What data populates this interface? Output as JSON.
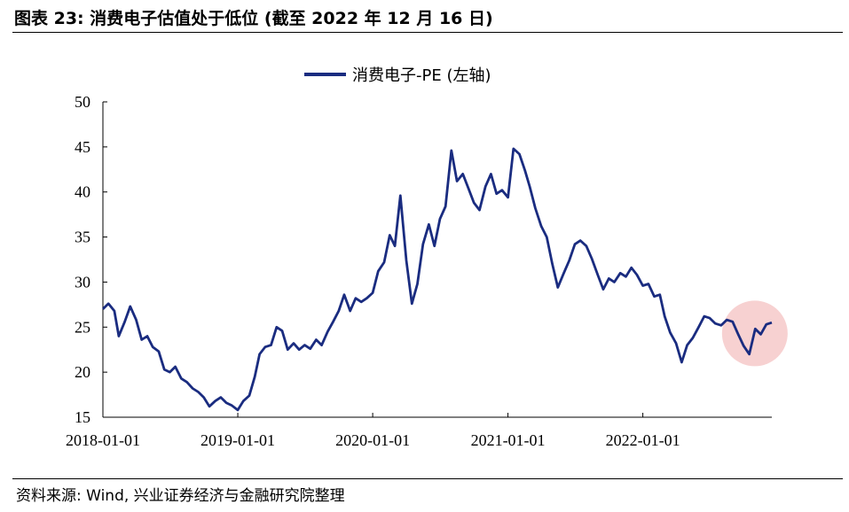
{
  "header": {
    "title": "图表 23: 消费电子估值处于低位 (截至 2022 年 12 月 16 日)"
  },
  "footer": {
    "source": "资料来源: Wind, 兴业证券经济与金融研究院整理"
  },
  "chart_data": {
    "type": "line",
    "title": "",
    "xlabel": "",
    "ylabel": "",
    "ylim": [
      15,
      50
    ],
    "yticks": [
      "15",
      "20",
      "25",
      "30",
      "35",
      "40",
      "45",
      "50"
    ],
    "xticks": [
      "2018-01-01",
      "2019-01-01",
      "2020-01-01",
      "2021-01-01",
      "2022-01-01"
    ],
    "xlim": [
      "2018-01-01",
      "2022-12-16"
    ],
    "grid": false,
    "legend_position": "top-center",
    "highlight": {
      "x": "2022-10-31",
      "y": 24.3,
      "color": "#f4c2c2"
    },
    "series": [
      {
        "name": "消费电子-PE (左轴)",
        "color": "#1a2c80",
        "points": [
          [
            "2018-01-01",
            27.0
          ],
          [
            "2018-01-16",
            27.6
          ],
          [
            "2018-02-01",
            26.8
          ],
          [
            "2018-02-13",
            24.0
          ],
          [
            "2018-03-01",
            25.6
          ],
          [
            "2018-03-16",
            27.3
          ],
          [
            "2018-04-01",
            25.8
          ],
          [
            "2018-04-16",
            23.6
          ],
          [
            "2018-05-01",
            24.0
          ],
          [
            "2018-05-16",
            22.8
          ],
          [
            "2018-06-01",
            22.3
          ],
          [
            "2018-06-16",
            20.3
          ],
          [
            "2018-07-01",
            20.0
          ],
          [
            "2018-07-16",
            20.6
          ],
          [
            "2018-08-01",
            19.3
          ],
          [
            "2018-08-16",
            18.9
          ],
          [
            "2018-09-01",
            18.2
          ],
          [
            "2018-09-16",
            17.8
          ],
          [
            "2018-10-01",
            17.2
          ],
          [
            "2018-10-16",
            16.2
          ],
          [
            "2018-11-01",
            16.8
          ],
          [
            "2018-11-16",
            17.2
          ],
          [
            "2018-12-01",
            16.6
          ],
          [
            "2018-12-16",
            16.3
          ],
          [
            "2019-01-01",
            15.8
          ],
          [
            "2019-01-16",
            16.8
          ],
          [
            "2019-02-01",
            17.4
          ],
          [
            "2019-02-16",
            19.5
          ],
          [
            "2019-03-01",
            22.0
          ],
          [
            "2019-03-16",
            22.8
          ],
          [
            "2019-04-01",
            23.0
          ],
          [
            "2019-04-16",
            25.0
          ],
          [
            "2019-05-01",
            24.6
          ],
          [
            "2019-05-16",
            22.5
          ],
          [
            "2019-06-01",
            23.2
          ],
          [
            "2019-06-16",
            22.5
          ],
          [
            "2019-07-01",
            23.0
          ],
          [
            "2019-07-16",
            22.6
          ],
          [
            "2019-08-01",
            23.6
          ],
          [
            "2019-08-16",
            23.0
          ],
          [
            "2019-09-01",
            24.5
          ],
          [
            "2019-09-16",
            25.6
          ],
          [
            "2019-10-01",
            26.8
          ],
          [
            "2019-10-16",
            28.6
          ],
          [
            "2019-11-01",
            26.8
          ],
          [
            "2019-11-16",
            28.2
          ],
          [
            "2019-12-01",
            27.8
          ],
          [
            "2019-12-16",
            28.2
          ],
          [
            "2020-01-01",
            28.8
          ],
          [
            "2020-01-16",
            31.2
          ],
          [
            "2020-02-01",
            32.2
          ],
          [
            "2020-02-16",
            35.2
          ],
          [
            "2020-03-01",
            34.0
          ],
          [
            "2020-03-16",
            39.6
          ],
          [
            "2020-04-01",
            32.4
          ],
          [
            "2020-04-16",
            27.6
          ],
          [
            "2020-05-01",
            29.8
          ],
          [
            "2020-05-16",
            34.2
          ],
          [
            "2020-06-01",
            36.4
          ],
          [
            "2020-06-16",
            34.0
          ],
          [
            "2020-07-01",
            37.0
          ],
          [
            "2020-07-16",
            38.4
          ],
          [
            "2020-08-01",
            44.6
          ],
          [
            "2020-08-16",
            41.2
          ],
          [
            "2020-09-01",
            42.0
          ],
          [
            "2020-09-16",
            40.4
          ],
          [
            "2020-10-01",
            38.8
          ],
          [
            "2020-10-16",
            38.0
          ],
          [
            "2020-11-01",
            40.6
          ],
          [
            "2020-11-16",
            42.0
          ],
          [
            "2020-12-01",
            39.8
          ],
          [
            "2020-12-16",
            40.2
          ],
          [
            "2021-01-01",
            39.4
          ],
          [
            "2021-01-16",
            44.8
          ],
          [
            "2021-02-01",
            44.2
          ],
          [
            "2021-02-16",
            42.4
          ],
          [
            "2021-03-01",
            40.6
          ],
          [
            "2021-03-16",
            38.2
          ],
          [
            "2021-04-01",
            36.2
          ],
          [
            "2021-04-16",
            35.0
          ],
          [
            "2021-05-01",
            32.0
          ],
          [
            "2021-05-16",
            29.4
          ],
          [
            "2021-06-01",
            31.0
          ],
          [
            "2021-06-16",
            32.4
          ],
          [
            "2021-07-01",
            34.2
          ],
          [
            "2021-07-16",
            34.6
          ],
          [
            "2021-08-01",
            34.0
          ],
          [
            "2021-08-16",
            32.6
          ],
          [
            "2021-09-01",
            30.8
          ],
          [
            "2021-09-16",
            29.2
          ],
          [
            "2021-10-01",
            30.4
          ],
          [
            "2021-10-16",
            30.0
          ],
          [
            "2021-11-01",
            31.0
          ],
          [
            "2021-11-16",
            30.6
          ],
          [
            "2021-12-01",
            31.6
          ],
          [
            "2021-12-16",
            30.8
          ],
          [
            "2022-01-01",
            29.6
          ],
          [
            "2022-01-16",
            29.8
          ],
          [
            "2022-02-01",
            28.4
          ],
          [
            "2022-02-16",
            28.6
          ],
          [
            "2022-03-01",
            26.2
          ],
          [
            "2022-03-16",
            24.4
          ],
          [
            "2022-04-01",
            23.2
          ],
          [
            "2022-04-16",
            21.1
          ],
          [
            "2022-05-01",
            23.0
          ],
          [
            "2022-05-16",
            23.8
          ],
          [
            "2022-06-01",
            25.0
          ],
          [
            "2022-06-16",
            26.2
          ],
          [
            "2022-07-01",
            26.0
          ],
          [
            "2022-07-16",
            25.4
          ],
          [
            "2022-08-01",
            25.2
          ],
          [
            "2022-08-16",
            25.8
          ],
          [
            "2022-09-01",
            25.6
          ],
          [
            "2022-09-16",
            24.2
          ],
          [
            "2022-10-01",
            22.9
          ],
          [
            "2022-10-16",
            22.0
          ],
          [
            "2022-11-01",
            24.8
          ],
          [
            "2022-11-16",
            24.2
          ],
          [
            "2022-12-01",
            25.3
          ],
          [
            "2022-12-16",
            25.5
          ]
        ]
      }
    ]
  }
}
